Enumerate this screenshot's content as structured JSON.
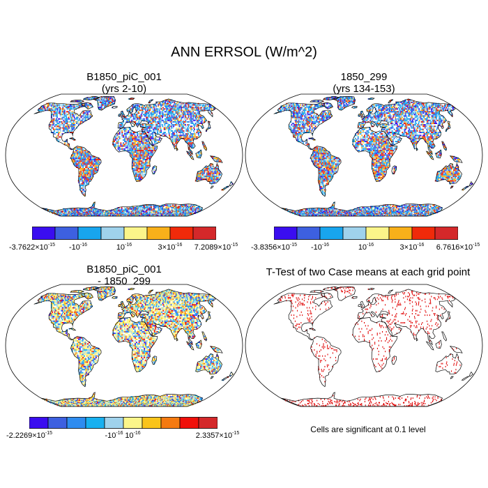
{
  "title": "ANN ERRSOL (W/m^2)",
  "panels": [
    {
      "id": "case1",
      "title_line1": "B1850_piC_001",
      "title_line2": "(yrs 2-10)",
      "type": "field",
      "palette": "diverging",
      "colorbar": {
        "colors": [
          "#3a0df0",
          "#3d60e0",
          "#18a5ee",
          "#9fd2ec",
          "#fbf58a",
          "#f8b01a",
          "#f02a0a",
          "#d4282a"
        ],
        "labels": [
          {
            "base": "-3.7622×10",
            "exp": "-15"
          },
          {
            "base": "-10",
            "exp": "-16"
          },
          {
            "base": "10",
            "exp": "-16"
          },
          {
            "base": "3×10",
            "exp": "-16"
          },
          {
            "base": "7.2089×10",
            "exp": "-15"
          }
        ]
      }
    },
    {
      "id": "case2",
      "title_line1": "1850_299",
      "title_line2": "(yrs 134-153)",
      "type": "field",
      "palette": "diverging",
      "colorbar": {
        "colors": [
          "#3a0df0",
          "#3d60e0",
          "#18a5ee",
          "#9fd2ec",
          "#fbf58a",
          "#f8b01a",
          "#f02a0a",
          "#d4282a"
        ],
        "labels": [
          {
            "base": "-3.8356×10",
            "exp": "-15"
          },
          {
            "base": "-10",
            "exp": "-16"
          },
          {
            "base": "10",
            "exp": "-16"
          },
          {
            "base": "3×10",
            "exp": "-16"
          },
          {
            "base": "6.7616×10",
            "exp": "-15"
          }
        ]
      }
    },
    {
      "id": "diff",
      "title_line1": "B1850_piC_001",
      "title_line2": "- 1850_299",
      "type": "field",
      "palette": "difference",
      "colorbar": {
        "colors": [
          "#3a0df0",
          "#3d60e0",
          "#2e8cf0",
          "#18b0f0",
          "#9fd2ec",
          "#fbf58a",
          "#f9c41a",
          "#f57a10",
          "#f0100a",
          "#d4282a"
        ],
        "labels": [
          {
            "base": "-2.2269×10",
            "exp": "-15"
          },
          {
            "base": "-10",
            "exp": "-16"
          },
          {
            "base": "10",
            "exp": "-16"
          },
          {
            "base": "2.3357×10",
            "exp": "-15"
          }
        ]
      }
    },
    {
      "id": "ttest",
      "title_line1": "T-Test of two Case means at each grid point",
      "caption": "Cells are significant at 0.1 level",
      "type": "significance",
      "palette": "significance",
      "colors": [
        "#e00000"
      ]
    }
  ],
  "projection": "Robinson",
  "map_style": {
    "coastline_color": "#000000",
    "ocean_color": "#ffffff"
  }
}
